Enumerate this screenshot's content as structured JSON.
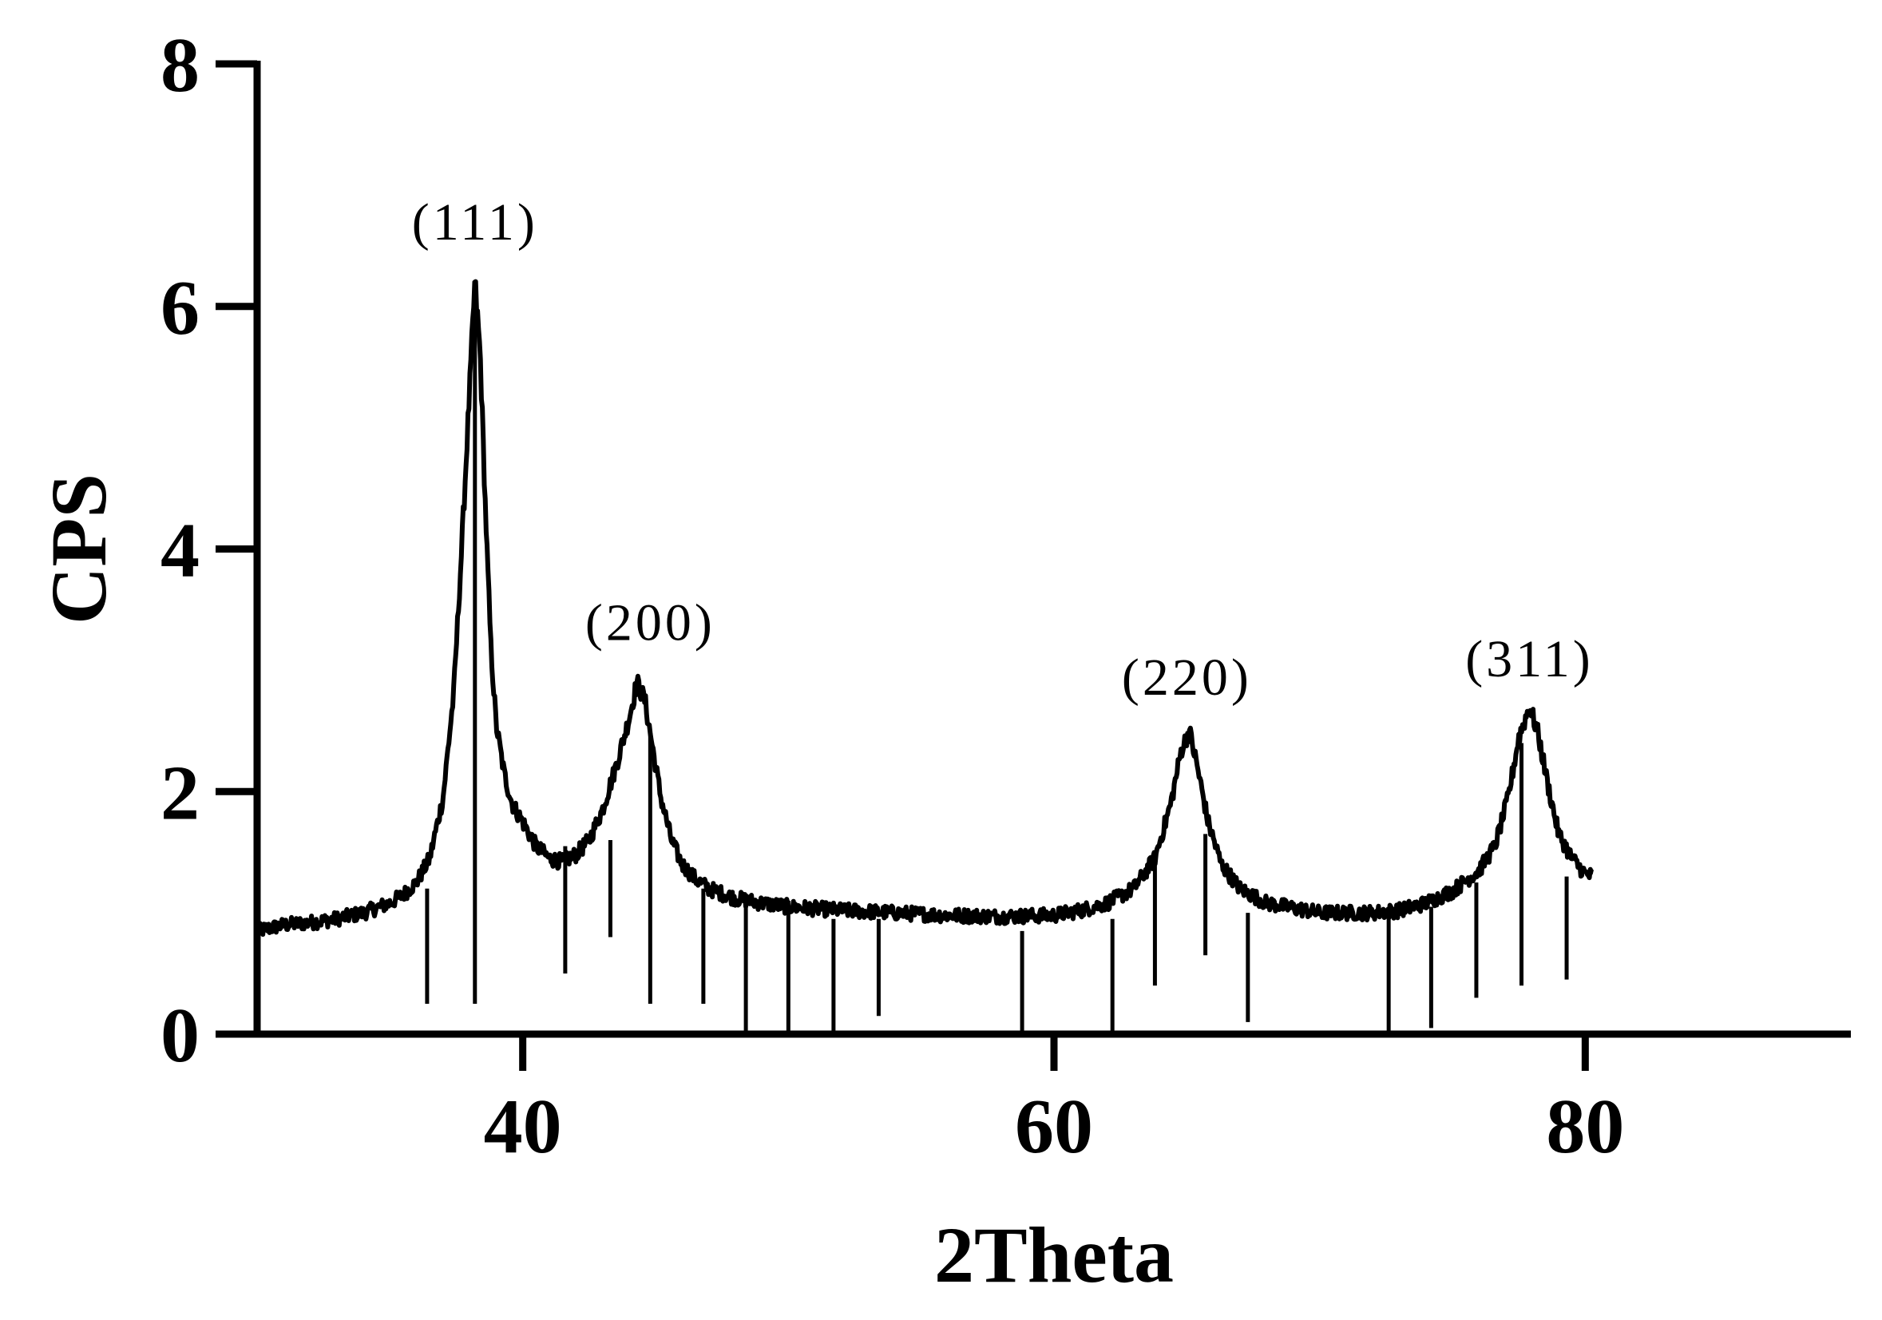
{
  "chart_data": {
    "type": "line",
    "title": "",
    "xlabel": "2Theta",
    "ylabel": "CPS",
    "xlim": [
      30,
      90
    ],
    "ylim": [
      0,
      8
    ],
    "x_ticks": [
      40,
      60,
      80
    ],
    "y_ticks": [
      0,
      2,
      4,
      6,
      8
    ],
    "grid": false,
    "legend": "none",
    "line_color": "#000000",
    "series": [
      {
        "x": [
          30.0,
          31.0,
          32.0,
          33.0,
          34.0,
          35.0,
          35.5,
          36.0,
          36.5,
          37.0,
          37.4,
          37.7,
          38.0,
          38.2,
          38.4,
          38.6,
          38.8,
          39.0,
          39.3,
          39.6,
          40.0,
          40.5,
          41.0,
          41.5,
          42.0,
          42.5,
          43.0,
          43.5,
          44.0,
          44.3,
          44.6,
          44.9,
          45.2,
          45.6,
          46.0,
          46.5,
          47.0,
          48.0,
          49.0,
          50.0,
          52.0,
          54.0,
          56.0,
          58.0,
          60.0,
          61.0,
          62.0,
          63.0,
          63.8,
          64.4,
          64.8,
          65.1,
          65.4,
          65.8,
          66.3,
          67.0,
          68.0,
          70.0,
          72.0,
          73.0,
          74.0,
          75.0,
          76.0,
          76.6,
          77.1,
          77.5,
          77.9,
          78.2,
          78.6,
          79.0,
          79.5,
          80.0,
          80.3
        ],
        "y": [
          0.85,
          0.9,
          0.92,
          0.95,
          1.0,
          1.08,
          1.15,
          1.25,
          1.45,
          1.95,
          2.8,
          4.0,
          5.3,
          6.2,
          5.6,
          4.3,
          3.2,
          2.55,
          2.15,
          1.9,
          1.75,
          1.55,
          1.45,
          1.42,
          1.48,
          1.6,
          1.85,
          2.2,
          2.6,
          2.9,
          2.75,
          2.35,
          1.95,
          1.6,
          1.4,
          1.28,
          1.2,
          1.12,
          1.08,
          1.05,
          1.02,
          1.0,
          0.98,
          0.97,
          0.98,
          1.02,
          1.08,
          1.2,
          1.45,
          1.9,
          2.35,
          2.5,
          2.2,
          1.75,
          1.4,
          1.2,
          1.08,
          1.0,
          1.0,
          1.02,
          1.08,
          1.18,
          1.35,
          1.55,
          1.95,
          2.45,
          2.7,
          2.5,
          2.05,
          1.65,
          1.45,
          1.32,
          1.3
        ]
      }
    ],
    "reference_lines": {
      "x": [
        36.4,
        38.2,
        41.6,
        43.3,
        44.8,
        46.8,
        48.4,
        50.0,
        51.7,
        53.4,
        58.8,
        62.2,
        63.8,
        65.7,
        67.3,
        72.6,
        74.2,
        75.9,
        77.6,
        79.3
      ],
      "y_top": [
        1.2,
        6.2,
        1.55,
        1.6,
        2.5,
        1.2,
        1.15,
        1.1,
        0.95,
        0.95,
        0.85,
        0.95,
        1.4,
        1.65,
        1.0,
        0.95,
        1.05,
        1.25,
        2.4,
        1.3
      ],
      "y_bottom": [
        0.25,
        0.25,
        0.5,
        0.8,
        0.25,
        0.25,
        0.0,
        0.0,
        0.0,
        0.15,
        0.0,
        0.0,
        0.4,
        0.65,
        0.1,
        0.0,
        0.05,
        0.3,
        0.4,
        0.45
      ]
    },
    "annotations": [
      {
        "text": "(111)",
        "x": 38.2,
        "y": 6.55
      },
      {
        "text": "(200)",
        "x": 44.8,
        "y": 3.25
      },
      {
        "text": "(220)",
        "x": 65.0,
        "y": 2.8
      },
      {
        "text": "(311)",
        "x": 77.9,
        "y": 2.95
      }
    ]
  }
}
